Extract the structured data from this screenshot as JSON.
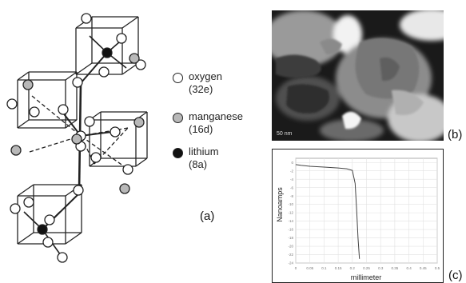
{
  "legend": [
    {
      "id": "oxygen",
      "name": "oxygen",
      "site": "(32e)",
      "fill": "#ffffff"
    },
    {
      "id": "manganese",
      "name": "manganese",
      "site": "(16d)",
      "fill": "#b8b8b8"
    },
    {
      "id": "lithium",
      "name": "lithium",
      "site": "(8a)",
      "fill": "#111111"
    }
  ],
  "labels": {
    "a": "(a)",
    "b": "(b)",
    "c": "(c)"
  },
  "sem": {
    "scale_text": "50 nm"
  },
  "chart_data": {
    "type": "line",
    "xlabel": "millimeter",
    "ylabel": "Nanoamps",
    "xlim": [
      0,
      0.5
    ],
    "ylim": [
      -24,
      1
    ],
    "grid": true,
    "x_ticks": [
      "0",
      "0.05",
      "0.1",
      "0.15",
      "0.2",
      "0.25",
      "0.3",
      "0.35",
      "0.4",
      "0.45",
      "0.5"
    ],
    "y_ticks": [
      "0",
      "-2",
      "-4",
      "-6",
      "-8",
      "-10",
      "-12",
      "-14",
      "-16",
      "-18",
      "-20",
      "-22",
      "-24"
    ],
    "series": [
      {
        "x": [
          0,
          0.02,
          0.05,
          0.1,
          0.15,
          0.18,
          0.2,
          0.21,
          0.215,
          0.22,
          0.225
        ],
        "y": [
          -0.5,
          -0.7,
          -0.9,
          -1.1,
          -1.3,
          -1.5,
          -1.9,
          -5,
          -11,
          -18,
          -23
        ]
      }
    ]
  }
}
